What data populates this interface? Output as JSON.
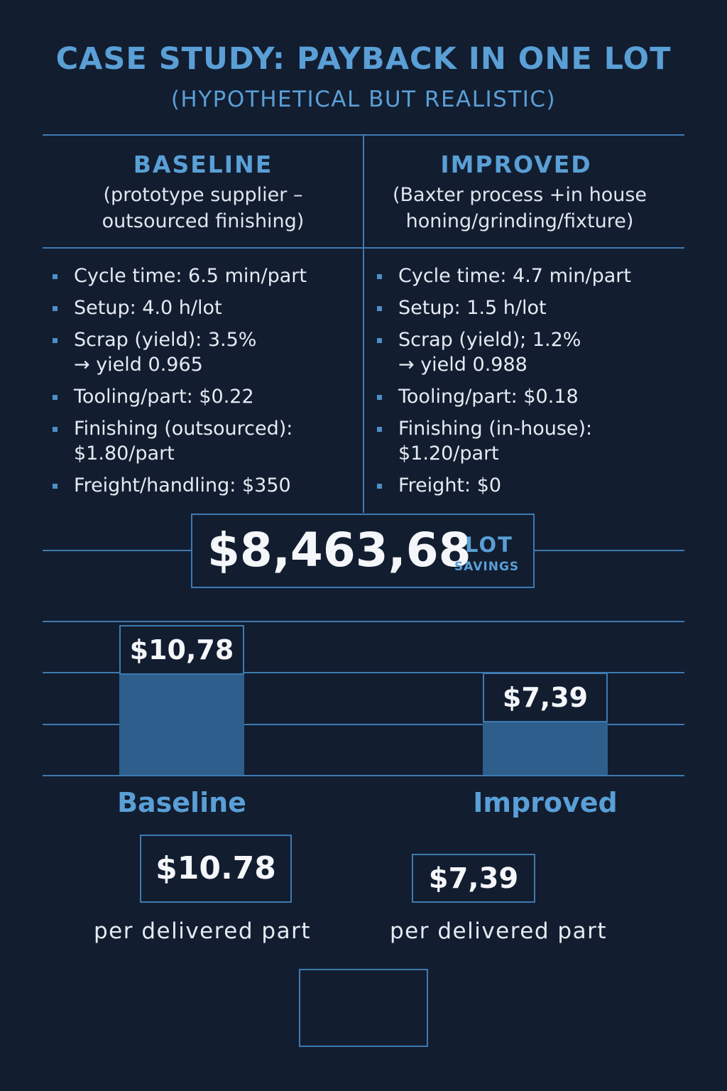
{
  "title": "CASE STUDY: PAYBACK IN ONE LOT",
  "subtitle": "(HYPOTHETICAL BUT REALISTIC)",
  "baseline": {
    "heading": "BASELINE",
    "description": "(prototype supplier –\noutsourced finishing)",
    "items": [
      "Cycle time: 6.5 min/part",
      "Setup: 4.0 h/lot",
      "Scrap (yield): 3.5%\n→ yield 0.965",
      "Tooling/part: $0.22",
      "Finishing (outsourced):\n$1.80/part",
      "Freight/handling: $350"
    ]
  },
  "improved": {
    "heading": "IMPROVED",
    "description": "(Baxter process +in house\nhoning/grinding/fixture)",
    "items": [
      "Cycle time: 4.7 min/part",
      "Setup: 1.5 h/lot",
      "Scrap (yield); 1.2%\n→ yield 0.988",
      "Tooling/part: $0.18",
      "Finishing (in-house):\n$1.20/part",
      "Freight: $0"
    ]
  },
  "savings": {
    "value": "$8,463,68",
    "label_top": "LOT",
    "label_bottom": "SAVINGS"
  },
  "chart_data": {
    "type": "bar",
    "categories": [
      "Baseline",
      "Improved"
    ],
    "values": [
      10.78,
      7.39
    ],
    "data_labels": [
      "$10,78",
      "$7,39"
    ],
    "ylim": [
      0,
      12
    ],
    "grid": true
  },
  "totals": [
    {
      "value": "$10.78",
      "caption": "per delivered part"
    },
    {
      "value": "$7,39",
      "caption": "per delivered part"
    }
  ],
  "colors": {
    "background": "#121d30",
    "accent": "#5a9fd6",
    "bar": "#2e5f8c",
    "rule": "#3e7ab0"
  }
}
